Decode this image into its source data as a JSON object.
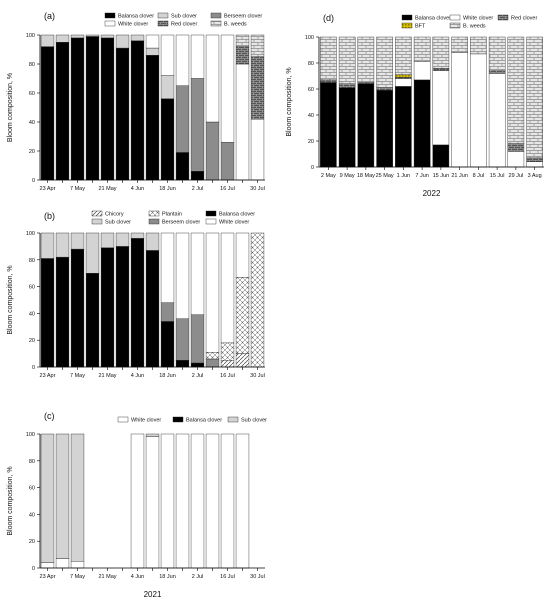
{
  "colors": {
    "balansa": "#000000",
    "sub": "#d3d3d3",
    "berseem": "#8c8c8c",
    "white": "#ffffff",
    "red": "#5a5a5a",
    "weeds": "#dedede",
    "bft": "#c8b400",
    "chicory": "#e8e8e8",
    "plantain": "#d9d9d9"
  },
  "chart_data": [
    {
      "id": "a",
      "type": "bar",
      "stacked": true,
      "panel_label": "(a)",
      "ylabel": "Bloom composition, %",
      "ylim": [
        0,
        100
      ],
      "yticks": [
        0,
        20,
        40,
        60,
        80,
        100
      ],
      "categories": [
        "23 Apr",
        "30 Apr",
        "7 May",
        "14 May",
        "21 May",
        "28 May",
        "4 Jun",
        "11 Jun",
        "18 Jun",
        "25 Jun",
        "2 Jul",
        "9 Jul",
        "16 Jul",
        "23 Jul",
        "30 Jul"
      ],
      "tick_labels": [
        "23 Apr",
        "",
        "7 May",
        "",
        "21 May",
        "",
        "4 Jun",
        "",
        "18 Jun",
        "",
        "2 Jul",
        "",
        "16 Jul",
        "",
        "30 Jul"
      ],
      "legend": [
        {
          "name": "Balansa clover",
          "key": "balansa"
        },
        {
          "name": "Sub clover",
          "key": "sub"
        },
        {
          "name": "Berseem clover",
          "key": "berseem"
        },
        {
          "name": "White clover",
          "key": "white"
        },
        {
          "name": "Red clover",
          "key": "red"
        },
        {
          "name": "B. weeds",
          "key": "weeds"
        }
      ],
      "series": [
        {
          "name": "Balansa clover",
          "key": "balansa",
          "values": [
            92,
            95,
            98,
            99,
            98,
            91,
            96,
            86,
            56,
            19,
            6,
            0,
            0,
            0,
            0
          ]
        },
        {
          "name": "Sub clover",
          "key": "sub",
          "values": [
            8,
            5,
            2,
            1,
            2,
            9,
            4,
            5,
            16,
            0,
            0,
            0,
            0,
            0,
            0
          ]
        },
        {
          "name": "Berseem clover",
          "key": "berseem",
          "values": [
            0,
            0,
            0,
            0,
            0,
            0,
            0,
            0,
            0,
            46,
            64,
            40,
            26,
            0,
            0
          ]
        },
        {
          "name": "White clover",
          "key": "white",
          "values": [
            0,
            0,
            0,
            0,
            0,
            0,
            0,
            9,
            28,
            35,
            30,
            60,
            74,
            80,
            42
          ]
        },
        {
          "name": "Red clover",
          "key": "red",
          "values": [
            0,
            0,
            0,
            0,
            0,
            0,
            0,
            0,
            0,
            0,
            0,
            0,
            0,
            12,
            43
          ]
        },
        {
          "name": "B. weeds",
          "key": "weeds",
          "values": [
            0,
            0,
            0,
            0,
            0,
            0,
            0,
            0,
            0,
            0,
            0,
            0,
            0,
            8,
            15
          ]
        }
      ]
    },
    {
      "id": "b",
      "type": "bar",
      "stacked": true,
      "panel_label": "(b)",
      "ylabel": "Bloom composition, %",
      "ylim": [
        0,
        100
      ],
      "yticks": [
        0,
        20,
        40,
        60,
        80,
        100
      ],
      "categories": [
        "23 Apr",
        "30 Apr",
        "7 May",
        "14 May",
        "21 May",
        "28 May",
        "4 Jun",
        "11 Jun",
        "18 Jun",
        "25 Jun",
        "2 Jul",
        "9 Jul",
        "16 Jul",
        "23 Jul",
        "30 Jul"
      ],
      "tick_labels": [
        "23 Apr",
        "",
        "7 May",
        "",
        "21 May",
        "",
        "4 Jun",
        "",
        "18 Jun",
        "",
        "2 Jul",
        "",
        "16 Jul",
        "",
        "30 Jul"
      ],
      "legend": [
        {
          "name": "Chicory",
          "key": "chicory"
        },
        {
          "name": "Plantain",
          "key": "plantain"
        },
        {
          "name": "Balansa clover",
          "key": "balansa"
        },
        {
          "name": "Sub clover",
          "key": "sub"
        },
        {
          "name": "Berseem clover",
          "key": "berseem"
        },
        {
          "name": "White clover",
          "key": "white"
        }
      ],
      "series": [
        {
          "name": "Balansa clover",
          "key": "balansa",
          "values": [
            81,
            82,
            88,
            70,
            89,
            90,
            96,
            87,
            34,
            5,
            3,
            0,
            0,
            0,
            0
          ]
        },
        {
          "name": "Sub clover",
          "key": "sub",
          "values": [
            19,
            18,
            12,
            30,
            11,
            10,
            4,
            13,
            0,
            0,
            0,
            0,
            0,
            0,
            0
          ]
        },
        {
          "name": "Berseem clover",
          "key": "berseem",
          "values": [
            0,
            0,
            0,
            0,
            0,
            0,
            0,
            0,
            14,
            31,
            36,
            6,
            0,
            0,
            0
          ]
        },
        {
          "name": "Chicory",
          "key": "chicory",
          "values": [
            0,
            0,
            0,
            0,
            0,
            0,
            0,
            0,
            0,
            0,
            0,
            0,
            5,
            10,
            0
          ]
        },
        {
          "name": "Plantain",
          "key": "plantain",
          "values": [
            0,
            0,
            0,
            0,
            0,
            0,
            0,
            0,
            0,
            0,
            0,
            5,
            13,
            57,
            100
          ]
        },
        {
          "name": "White clover",
          "key": "white",
          "values": [
            0,
            0,
            0,
            0,
            0,
            0,
            0,
            0,
            52,
            64,
            61,
            89,
            82,
            33,
            0
          ]
        }
      ]
    },
    {
      "id": "c",
      "type": "bar",
      "stacked": true,
      "panel_label": "(c)",
      "ylabel": "Bloom composition, %",
      "year": "2021",
      "ylim": [
        0,
        100
      ],
      "yticks": [
        0,
        20,
        40,
        60,
        80,
        100
      ],
      "categories": [
        "23 Apr",
        "30 Apr",
        "7 May",
        "14 May",
        "21 May",
        "28 May",
        "4 Jun",
        "11 Jun",
        "18 Jun",
        "25 Jun",
        "2 Jul",
        "9 Jul",
        "16 Jul",
        "23 Jul",
        "30 Jul"
      ],
      "tick_labels": [
        "23 Apr",
        "",
        "7 May",
        "",
        "21 May",
        "",
        "4 Jun",
        "",
        "18 Jun",
        "",
        "2 Jul",
        "",
        "16 Jul",
        "",
        "30 Jul"
      ],
      "legend": [
        {
          "name": "White clover",
          "key": "white"
        },
        {
          "name": "Balansa clover",
          "key": "balansa"
        },
        {
          "name": "Sub clover",
          "key": "sub"
        }
      ],
      "series": [
        {
          "name": "White clover",
          "key": "white",
          "values": [
            4,
            7,
            5,
            0,
            0,
            0,
            100,
            98,
            100,
            100,
            100,
            100,
            100,
            100,
            0
          ]
        },
        {
          "name": "Balansa clover",
          "key": "balansa",
          "values": [
            0,
            0,
            0,
            0,
            0,
            0,
            0,
            0,
            0,
            0,
            0,
            0,
            0,
            0,
            0
          ]
        },
        {
          "name": "Sub clover",
          "key": "sub",
          "values": [
            96,
            93,
            95,
            0,
            0,
            0,
            0,
            2,
            0,
            0,
            0,
            0,
            0,
            0,
            0
          ]
        }
      ]
    },
    {
      "id": "d",
      "type": "bar",
      "stacked": true,
      "panel_label": "(d)",
      "ylabel": "Bloom composition, %",
      "year": "2022",
      "ylim": [
        0,
        100
      ],
      "yticks": [
        0,
        20,
        40,
        60,
        80,
        100
      ],
      "categories": [
        "2 May",
        "9 May",
        "18 May",
        "25 May",
        "1 Jun",
        "7 Jun",
        "15 Jun",
        "21 Jun",
        "8 Jul",
        "15 Jul",
        "29 Jul",
        "3 Aug"
      ],
      "tick_labels": [
        "2 May",
        "9 May",
        "18 May",
        "25 May",
        "1 Jun",
        "7 Jun",
        "15 Jun",
        "21 Jun",
        "8 Jul",
        "15 Jul",
        "29 Jul",
        "3 Aug"
      ],
      "legend": [
        {
          "name": "Balansa clover",
          "key": "balansa"
        },
        {
          "name": "White clover",
          "key": "white"
        },
        {
          "name": "Red clover",
          "key": "red"
        },
        {
          "name": "BFT",
          "key": "bft"
        },
        {
          "name": "B. weeds",
          "key": "weeds"
        }
      ],
      "series": [
        {
          "name": "Balansa clover",
          "key": "balansa",
          "values": [
            65,
            61,
            64,
            59,
            62,
            67,
            17,
            0,
            0,
            0,
            0,
            0
          ]
        },
        {
          "name": "White clover",
          "key": "white",
          "values": [
            0,
            0,
            0,
            0,
            6,
            14,
            57,
            88,
            87,
            72,
            12,
            4
          ]
        },
        {
          "name": "Red clover",
          "key": "red",
          "values": [
            2,
            3,
            1,
            2,
            1,
            0,
            2,
            0,
            0,
            2,
            6,
            3
          ]
        },
        {
          "name": "BFT",
          "key": "bft",
          "values": [
            0,
            0,
            0,
            0,
            2,
            0,
            0,
            0,
            0,
            0,
            0,
            0
          ]
        },
        {
          "name": "B. weeds",
          "key": "weeds",
          "values": [
            33,
            36,
            35,
            39,
            29,
            19,
            24,
            12,
            13,
            26,
            82,
            93
          ]
        }
      ]
    }
  ]
}
